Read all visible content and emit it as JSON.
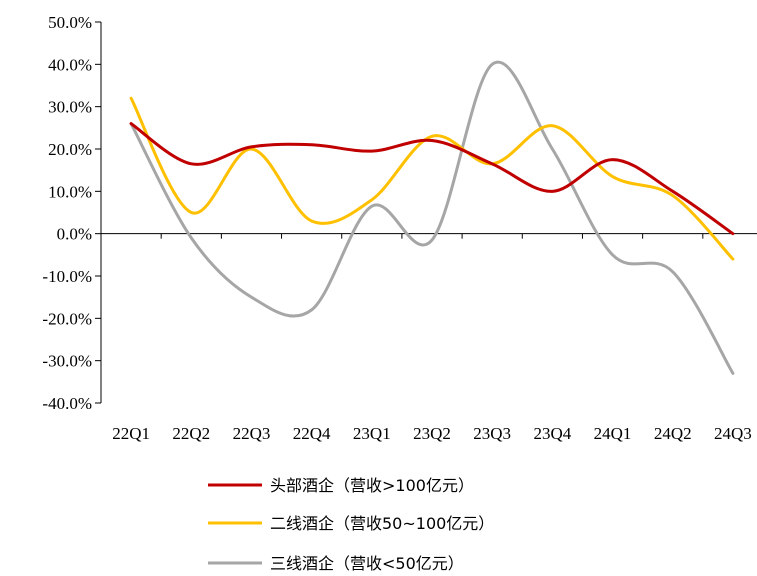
{
  "chart_data": {
    "type": "line",
    "title": "",
    "xlabel": "",
    "ylabel": "",
    "categories": [
      "22Q1",
      "22Q2",
      "22Q3",
      "22Q4",
      "23Q1",
      "23Q2",
      "23Q3",
      "23Q4",
      "24Q1",
      "24Q2",
      "24Q3"
    ],
    "y_ticks": [
      "50.0%",
      "40.0%",
      "30.0%",
      "20.0%",
      "10.0%",
      "0.0%",
      "-10.0%",
      "-20.0%",
      "-30.0%",
      "-40.0%"
    ],
    "ylim": [
      -40,
      50
    ],
    "y_unit": "%",
    "grid": false,
    "legend_position": "bottom",
    "smooth": true,
    "series": [
      {
        "name": "头部酒企（营收>100亿元）",
        "color": "#C00000",
        "values": [
          26.0,
          16.5,
          20.5,
          21.0,
          19.5,
          22.0,
          16.5,
          10.0,
          17.5,
          10.0,
          0.0
        ]
      },
      {
        "name": "二线酒企（营收50~100亿元）",
        "color": "#FFC000",
        "values": [
          32.0,
          5.0,
          20.0,
          3.0,
          8.0,
          23.0,
          16.5,
          25.5,
          13.5,
          9.0,
          -6.0
        ]
      },
      {
        "name": "三线酒企（营收<50亿元）",
        "color": "#A6A6A6",
        "values": [
          26.0,
          -1.0,
          -15.0,
          -18.0,
          6.5,
          -1.5,
          40.0,
          20.0,
          -5.0,
          -9.0,
          -33.0
        ]
      }
    ]
  }
}
